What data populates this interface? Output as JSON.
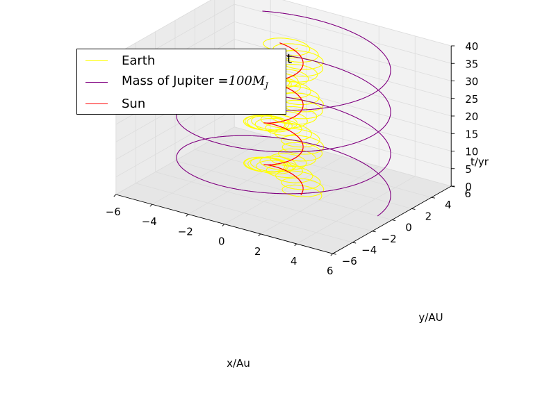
{
  "chart_data": {
    "type": "line",
    "projection": "3d",
    "title": "X-Y-t",
    "xlabel": "x/Au",
    "ylabel": "y/AU",
    "zlabel": "t/yr",
    "xlim": [
      -6,
      6
    ],
    "ylim": [
      -6,
      6
    ],
    "zlim": [
      0,
      40
    ],
    "x_ticks": [
      "−6",
      "−4",
      "−2",
      "0",
      "2",
      "4",
      "6"
    ],
    "y_ticks": [
      "−6",
      "−4",
      "−2",
      "0",
      "2",
      "4",
      "6"
    ],
    "z_ticks": [
      "0",
      "5",
      "10",
      "15",
      "20",
      "25",
      "30",
      "35",
      "40"
    ],
    "grid": true,
    "legend_position": "top-left",
    "series": [
      {
        "name": "Earth",
        "color": "#ffff00",
        "orbit_radius": 1.0,
        "period": 1.0,
        "t_range": [
          0,
          40
        ],
        "center_offset_amplitude": 0.95,
        "center_offset_period": 11.9
      },
      {
        "name": "Mass of Jupiter =100M_J",
        "color": "#800080",
        "orbit_radius": 5.2,
        "period": 11.9,
        "t_range": [
          0,
          40
        ]
      },
      {
        "name": "Sun",
        "color": "#ff0000",
        "orbit_radius": 0.95,
        "period": 11.9,
        "t_range": [
          0,
          40
        ]
      }
    ]
  },
  "legend": {
    "items": [
      {
        "label": "Earth",
        "color": "#ffff00"
      },
      {
        "label_prefix": "Mass of Jupiter =",
        "label_math": "100M",
        "label_sub": "J",
        "color": "#800080"
      },
      {
        "label": "Sun",
        "color": "#ff0000"
      }
    ]
  }
}
